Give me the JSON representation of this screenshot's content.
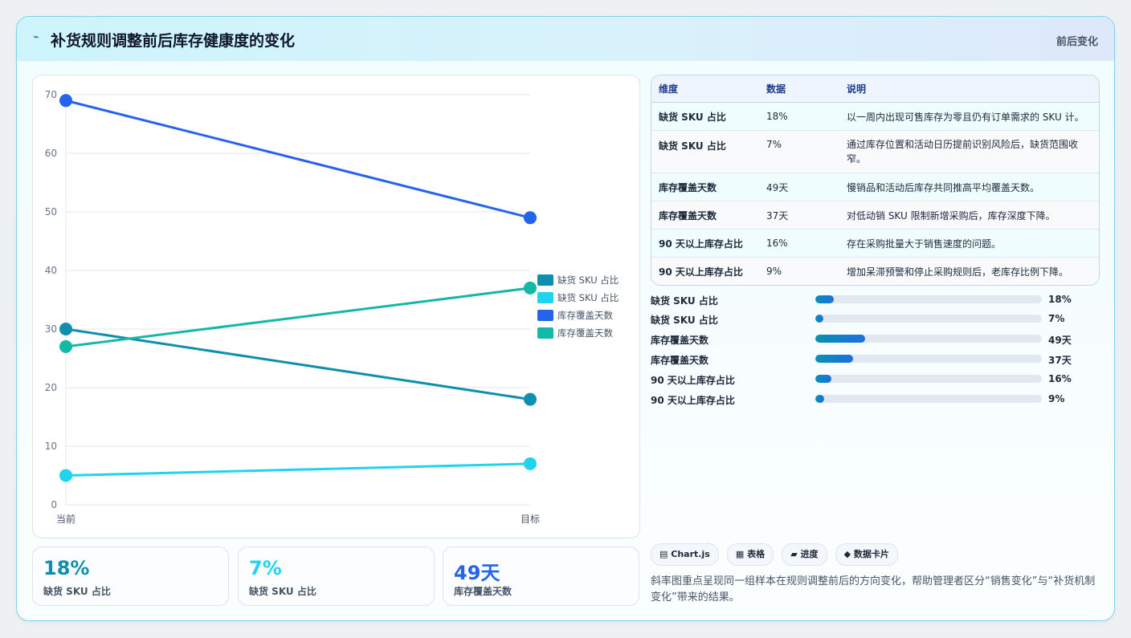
{
  "header": {
    "title": "补货规则调整前后库存健康度的变化",
    "tag": "前后变化",
    "icon": "lightning-icon"
  },
  "colors": {
    "series1": "#0e8fae",
    "series2": "#22d3ee",
    "series3": "#2563eb",
    "series4": "#14b8a6"
  },
  "chart_data": {
    "type": "line",
    "categories": [
      "当前",
      "目标"
    ],
    "ylim": [
      0,
      70
    ],
    "yticks": [
      0,
      10,
      20,
      30,
      40,
      50,
      60,
      70
    ],
    "grid": true,
    "legend_position": "right",
    "series": [
      {
        "name": "缺货 SKU 占比",
        "values": [
          30,
          18
        ],
        "color": "#0e8fae"
      },
      {
        "name": "缺货 SKU 占比",
        "values": [
          5,
          7
        ],
        "color": "#22d3ee"
      },
      {
        "name": "库存覆盖天数",
        "values": [
          69,
          49
        ],
        "color": "#2563eb"
      },
      {
        "name": "库存覆盖天数",
        "values": [
          27,
          37
        ],
        "color": "#14b8a6"
      }
    ]
  },
  "kpis": [
    {
      "value": "18%",
      "label": "缺货 SKU 占比",
      "color": "#0e8fae"
    },
    {
      "value": "7%",
      "label": "缺货 SKU 占比",
      "color": "#22d3ee"
    },
    {
      "value": "49天",
      "label": "库存覆盖天数",
      "color": "#2563eb"
    }
  ],
  "table": {
    "headers": [
      "维度",
      "数据",
      "说明"
    ],
    "rows": [
      {
        "dim": "缺货 SKU 占比",
        "val": "18%",
        "desc": "以一周内出现可售库存为零且仍有订单需求的 SKU 计。"
      },
      {
        "dim": "缺货 SKU 占比",
        "val": "7%",
        "desc": "通过库存位置和活动日历提前识别风险后，缺货范围收窄。"
      },
      {
        "dim": "库存覆盖天数",
        "val": "49天",
        "desc": "慢销品和活动后库存共同推高平均覆盖天数。"
      },
      {
        "dim": "库存覆盖天数",
        "val": "37天",
        "desc": "对低动销 SKU 限制新增采购后，库存深度下降。"
      },
      {
        "dim": "90 天以上库存占比",
        "val": "16%",
        "desc": "存在采购批量大于销售速度的问题。"
      },
      {
        "dim": "90 天以上库存占比",
        "val": "9%",
        "desc": "增加呆滞预警和停止采购规则后，老库存比例下降。"
      }
    ]
  },
  "progress": [
    {
      "label": "缺货 SKU 占比",
      "value": "18%",
      "fraction": 0.08
    },
    {
      "label": "缺货 SKU 占比",
      "value": "7%",
      "fraction": 0.035
    },
    {
      "label": "库存覆盖天数",
      "value": "49天",
      "fraction": 0.22
    },
    {
      "label": "库存覆盖天数",
      "value": "37天",
      "fraction": 0.165
    },
    {
      "label": "90 天以上库存占比",
      "value": "16%",
      "fraction": 0.07
    },
    {
      "label": "90 天以上库存占比",
      "value": "9%",
      "fraction": 0.04
    }
  ],
  "chips": [
    {
      "icon": "▤",
      "label": "Chart.js"
    },
    {
      "icon": "▦",
      "label": "表格"
    },
    {
      "icon": "▰",
      "label": "进度"
    },
    {
      "icon": "◆",
      "label": "数据卡片"
    }
  ],
  "note": "斜率图重点呈现同一组样本在规则调整前后的方向变化，帮助管理者区分“销售变化”与“补货机制变化”带来的结果。"
}
